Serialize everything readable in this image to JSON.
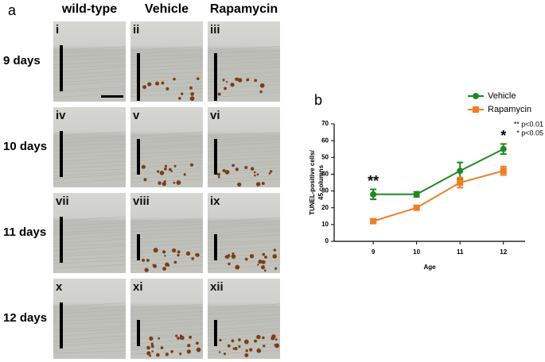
{
  "panel_a": {
    "label": "a",
    "columns": [
      "wild-type",
      "Vehicle",
      "Rapamycin"
    ],
    "rows": [
      "9 days",
      "10 days",
      "11 days",
      "12 days"
    ],
    "images": [
      "i",
      "ii",
      "iii",
      "iv",
      "v",
      "vi",
      "vii",
      "viii",
      "ix",
      "x",
      "xi",
      "xii"
    ]
  },
  "chart_data": {
    "type": "line",
    "panel_label": "b",
    "x_label": "Age",
    "y_label": [
      "TUNEL-positive cells/",
      "45 columns"
    ],
    "x": [
      9,
      10,
      11,
      12
    ],
    "xlim": [
      8.1,
      12.5
    ],
    "xticks": [
      9,
      10,
      11,
      12
    ],
    "ylim": [
      0,
      70
    ],
    "yticks": [
      0,
      10,
      20,
      30,
      40,
      50,
      60,
      70
    ],
    "series": [
      {
        "name": "Vehicle",
        "color": "#1f8a1f",
        "values": [
          28,
          28,
          42,
          55
        ],
        "errors": [
          3,
          1.5,
          5,
          3
        ]
      },
      {
        "name": "Rapamycin",
        "color": "#f47c20",
        "values": [
          12,
          20,
          35,
          42
        ],
        "errors": [
          1,
          1,
          3,
          2.5
        ]
      }
    ],
    "annotations": [
      {
        "text": "**",
        "x": 9
      },
      {
        "text": "*",
        "x": 12
      }
    ],
    "notes": [
      "** p<0.01",
      "* p<0.05"
    ]
  }
}
